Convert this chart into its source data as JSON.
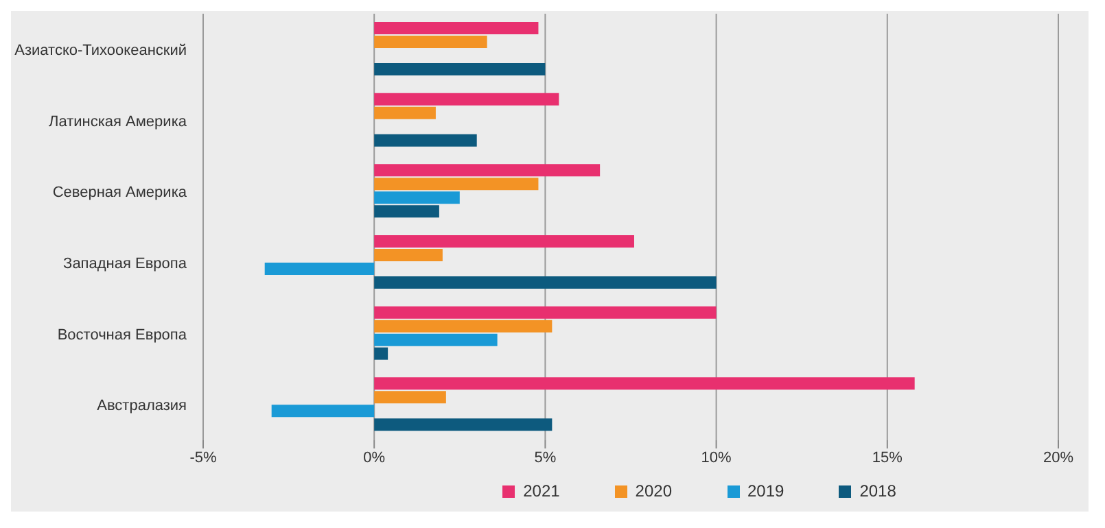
{
  "chart_data": {
    "type": "bar",
    "orientation": "horizontal",
    "categories": [
      "Азиатско-Тихоокеанский",
      "Латинская Америка",
      "Северная Америка",
      "Западная Европа",
      "Восточная Европа",
      "Австралазия"
    ],
    "series": [
      {
        "name": "2021",
        "color": "#e8306f",
        "values": [
          4.8,
          5.4,
          6.6,
          7.6,
          10.0,
          15.8
        ]
      },
      {
        "name": "2020",
        "color": "#f39325",
        "values": [
          3.3,
          1.8,
          4.8,
          2.0,
          5.2,
          2.1
        ]
      },
      {
        "name": "2019",
        "color": "#1a9ad6",
        "values": [
          null,
          null,
          2.5,
          -3.2,
          3.6,
          -3.0
        ]
      },
      {
        "name": "2018",
        "color": "#0d5a7e",
        "values": [
          5.0,
          3.0,
          1.9,
          10.0,
          0.4,
          5.2
        ]
      }
    ],
    "xlim": [
      -5,
      20
    ],
    "xticks": [
      {
        "value": -5,
        "label": "-5%"
      },
      {
        "value": 0,
        "label": "0%"
      },
      {
        "value": 5,
        "label": "5%"
      },
      {
        "value": 10,
        "label": "10%"
      },
      {
        "value": 15,
        "label": "15%"
      },
      {
        "value": 20,
        "label": "20%"
      }
    ],
    "grid": "x",
    "legend": "bottom"
  }
}
